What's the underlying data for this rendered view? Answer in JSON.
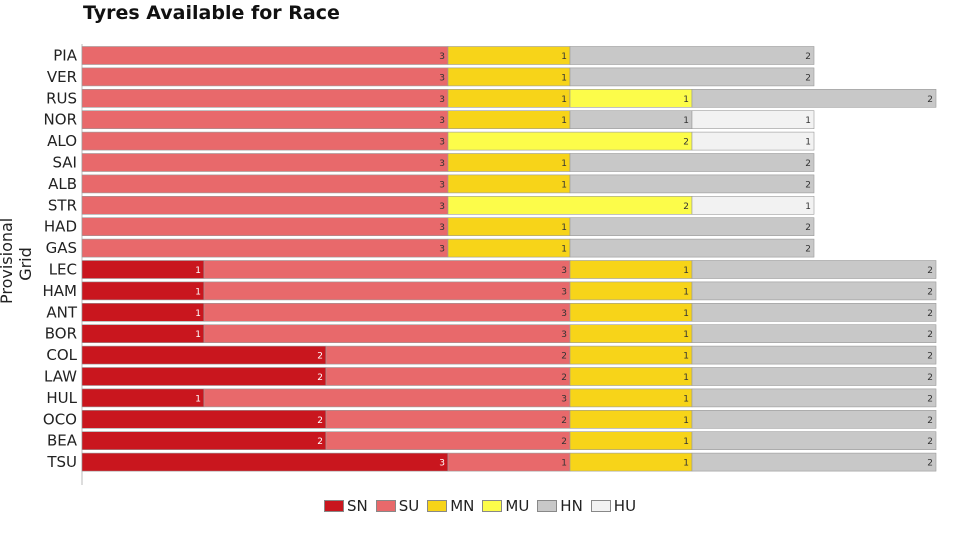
{
  "chart_data": {
    "type": "bar",
    "orientation": "horizontal",
    "stacked": true,
    "title": "Tyres Available for Race",
    "ylabel": "Provisional Grid",
    "categories": [
      "PIA",
      "VER",
      "RUS",
      "NOR",
      "ALO",
      "SAI",
      "ALB",
      "STR",
      "HAD",
      "GAS",
      "LEC",
      "HAM",
      "ANT",
      "BOR",
      "COL",
      "LAW",
      "HUL",
      "OCO",
      "BEA",
      "TSU"
    ],
    "series": [
      {
        "name": "SN",
        "color": "#c9161e",
        "values": [
          0,
          0,
          0,
          0,
          0,
          0,
          0,
          0,
          0,
          0,
          1,
          1,
          1,
          1,
          2,
          2,
          1,
          2,
          2,
          3
        ]
      },
      {
        "name": "SU",
        "color": "#e8696b",
        "values": [
          3,
          3,
          3,
          3,
          3,
          3,
          3,
          3,
          3,
          3,
          3,
          3,
          3,
          3,
          2,
          2,
          3,
          2,
          2,
          1
        ]
      },
      {
        "name": "MN",
        "color": "#f7d419",
        "values": [
          1,
          1,
          1,
          1,
          0,
          1,
          1,
          0,
          1,
          1,
          1,
          1,
          1,
          1,
          1,
          1,
          1,
          1,
          1,
          1
        ]
      },
      {
        "name": "MU",
        "color": "#fcfc4a",
        "values": [
          0,
          0,
          1,
          0,
          2,
          0,
          0,
          2,
          0,
          0,
          0,
          0,
          0,
          0,
          0,
          0,
          0,
          0,
          0,
          0
        ]
      },
      {
        "name": "HN",
        "color": "#c8c8c8",
        "values": [
          2,
          2,
          2,
          1,
          0,
          2,
          2,
          0,
          2,
          2,
          2,
          2,
          2,
          2,
          2,
          2,
          2,
          2,
          2,
          2
        ]
      },
      {
        "name": "HU",
        "color": "#f2f2f2",
        "values": [
          0,
          0,
          0,
          1,
          1,
          0,
          0,
          1,
          0,
          0,
          0,
          0,
          0,
          0,
          0,
          0,
          0,
          0,
          0,
          0
        ]
      }
    ],
    "xlim": [
      0,
      7
    ],
    "legend": "bottom-center",
    "grid": false
  }
}
